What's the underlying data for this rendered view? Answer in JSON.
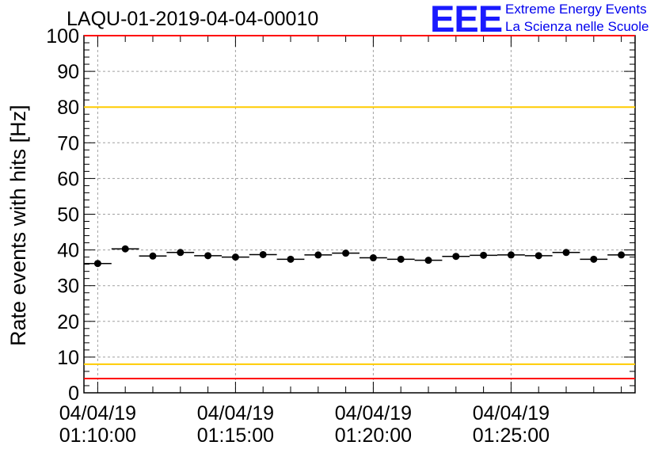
{
  "header": {
    "title": "LAQU-01-2019-04-04-00010",
    "logo_text": "EEE",
    "logo_line1": "Extreme Energy Events",
    "logo_line2": "La Scienza nelle Scuole"
  },
  "colors": {
    "point": "#000000",
    "red_limit": "#ff0000",
    "yellow_limit": "#ffcc00",
    "grid": "#a0a0a0",
    "logo": "#1a1aff"
  },
  "chart_data": {
    "type": "scatter",
    "title": "LAQU-01-2019-04-04-00010",
    "xlabel": "",
    "ylabel": "Rate events with hits [Hz]",
    "ylim": [
      0,
      100
    ],
    "xlim": [
      "01:09:30",
      "01:29:30"
    ],
    "x_ticks": [
      {
        "line1": "04/04/19",
        "line2": "01:10:00",
        "time": "01:10:00"
      },
      {
        "line1": "04/04/19",
        "line2": "01:15:00",
        "time": "01:15:00"
      },
      {
        "line1": "04/04/19",
        "line2": "01:20:00",
        "time": "01:20:00"
      },
      {
        "line1": "04/04/19",
        "line2": "01:25:00",
        "time": "01:25:00"
      }
    ],
    "y_ticks": [
      "0",
      "10",
      "20",
      "30",
      "40",
      "50",
      "60",
      "70",
      "80",
      "90",
      "100"
    ],
    "x": [
      "01:10:00",
      "01:11:00",
      "01:12:00",
      "01:13:00",
      "01:14:00",
      "01:15:00",
      "01:16:00",
      "01:17:00",
      "01:18:00",
      "01:19:00",
      "01:20:00",
      "01:21:00",
      "01:22:00",
      "01:23:00",
      "01:24:00",
      "01:25:00",
      "01:26:00",
      "01:27:00",
      "01:28:00",
      "01:29:00"
    ],
    "values": [
      36.2,
      40.3,
      38.3,
      39.3,
      38.4,
      38.0,
      38.7,
      37.4,
      38.6,
      39.1,
      37.8,
      37.4,
      37.1,
      38.2,
      38.5,
      38.6,
      38.4,
      39.3,
      37.4,
      38.6
    ],
    "reference_lines": [
      {
        "value": 100,
        "color": "red"
      },
      {
        "value": 80,
        "color": "yellow"
      },
      {
        "value": 8,
        "color": "yellow"
      },
      {
        "value": 4,
        "color": "red"
      }
    ],
    "grid": true
  }
}
